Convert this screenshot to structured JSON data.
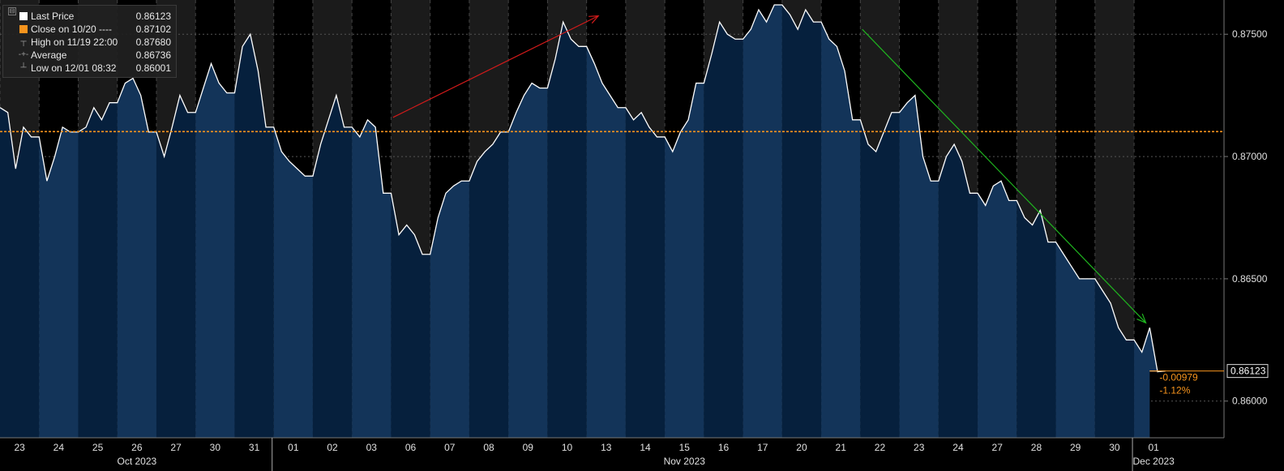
{
  "legend": {
    "collapse_glyph": "⊟",
    "rows": [
      {
        "icon": "square-white",
        "color": "#ffffff",
        "label": "Last Price",
        "value": "0.86123"
      },
      {
        "icon": "square-orange",
        "color": "#f7941d",
        "label": "Close on 10/20 ----",
        "value": "0.87102"
      },
      {
        "icon": "high-marker-icon",
        "label": "High on 11/19 22:00",
        "value": "0.87680"
      },
      {
        "icon": "average-marker-icon",
        "label": "Average",
        "value": "0.86736"
      },
      {
        "icon": "low-marker-icon",
        "label": "Low on 12/01 08:32",
        "value": "0.86001"
      }
    ]
  },
  "chart_data": {
    "type": "area",
    "series": [
      {
        "name": "Last Price"
      }
    ],
    "x_labels": [
      "23",
      "24",
      "25",
      "26",
      "27",
      "30",
      "31",
      "01",
      "02",
      "03",
      "06",
      "07",
      "08",
      "09",
      "10",
      "13",
      "14",
      "15",
      "16",
      "17",
      "20",
      "21",
      "22",
      "23",
      "24",
      "27",
      "28",
      "29",
      "30",
      "01"
    ],
    "month_labels": [
      {
        "text": "Oct 2023",
        "day_index": 3
      },
      {
        "text": "Nov 2023",
        "day_index": 17
      },
      {
        "text": "Dec 2023",
        "day_index": 29
      }
    ],
    "ylim": [
      0.8585,
      0.8764
    ],
    "y_ticks": [
      "0.86000",
      "0.86500",
      "0.87000",
      "0.87500"
    ],
    "y_tick_values": [
      0.86,
      0.865,
      0.87,
      0.875
    ],
    "daily_values": [
      [
        0.872,
        0.8718,
        0.8695,
        0.8712,
        0.8708
      ],
      [
        0.8708,
        0.869,
        0.87,
        0.8712,
        0.871
      ],
      [
        0.871,
        0.8712,
        0.872,
        0.8715,
        0.8722
      ],
      [
        0.8722,
        0.873,
        0.8732,
        0.8725,
        0.871
      ],
      [
        0.871,
        0.87,
        0.8712,
        0.8725,
        0.8718
      ],
      [
        0.8718,
        0.8728,
        0.8738,
        0.873,
        0.8726
      ],
      [
        0.8726,
        0.8745,
        0.875,
        0.8735,
        0.8712
      ],
      [
        0.8712,
        0.8702,
        0.8698,
        0.8695,
        0.8692
      ],
      [
        0.8692,
        0.8705,
        0.8715,
        0.8725,
        0.8712
      ],
      [
        0.8712,
        0.8708,
        0.8715,
        0.8712,
        0.8685
      ],
      [
        0.8685,
        0.8668,
        0.8672,
        0.8668,
        0.866
      ],
      [
        0.866,
        0.8675,
        0.8685,
        0.8688,
        0.869
      ],
      [
        0.869,
        0.8698,
        0.8702,
        0.8705,
        0.871
      ],
      [
        0.871,
        0.8718,
        0.8725,
        0.873,
        0.8728
      ],
      [
        0.8728,
        0.874,
        0.8755,
        0.8748,
        0.8745
      ],
      [
        0.8745,
        0.8738,
        0.873,
        0.8725,
        0.872
      ],
      [
        0.872,
        0.8715,
        0.8718,
        0.8712,
        0.8708
      ],
      [
        0.8708,
        0.8702,
        0.871,
        0.8715,
        0.873
      ],
      [
        0.873,
        0.8742,
        0.8755,
        0.875,
        0.8748
      ],
      [
        0.8748,
        0.8752,
        0.876,
        0.8755,
        0.8762
      ],
      [
        0.8762,
        0.8758,
        0.8752,
        0.876,
        0.8755
      ],
      [
        0.8755,
        0.8748,
        0.8745,
        0.8735,
        0.8715
      ],
      [
        0.8715,
        0.8705,
        0.8702,
        0.871,
        0.8718
      ],
      [
        0.8718,
        0.8722,
        0.8725,
        0.87,
        0.869
      ],
      [
        0.869,
        0.87,
        0.8705,
        0.8698,
        0.8685
      ],
      [
        0.8685,
        0.868,
        0.8688,
        0.869,
        0.8682
      ],
      [
        0.8682,
        0.8675,
        0.8672,
        0.8678,
        0.8665
      ],
      [
        0.8665,
        0.866,
        0.8655,
        0.865,
        0.865
      ],
      [
        0.865,
        0.8645,
        0.864,
        0.863,
        0.8625
      ],
      [
        0.8625,
        0.862,
        0.863,
        0.8612,
        0.86123
      ]
    ],
    "reference_line": {
      "label": "Close on 10/20",
      "value": 0.87102,
      "color": "#f7941d"
    },
    "last_value_label": "0.86123",
    "change_labels": [
      "-0.00979",
      "-1.12%"
    ],
    "trend_arrows": [
      {
        "color": "#d11a1a",
        "from": [
          10,
          0.8716
        ],
        "to": [
          15,
          0.87575
        ]
      },
      {
        "color": "#1fb51f",
        "from": [
          22,
          0.8752
        ],
        "to": [
          29,
          0.8632
        ]
      }
    ],
    "colors": {
      "area_fill": "#06203d",
      "area_fill_light": "#133459",
      "price_line": "#ffffff",
      "shade": "#1b1b1b",
      "grid": "#555555",
      "axis_text": "#e0e0e0",
      "change_text": "#f7941d"
    },
    "grid": true,
    "legend_position": "top-left"
  }
}
